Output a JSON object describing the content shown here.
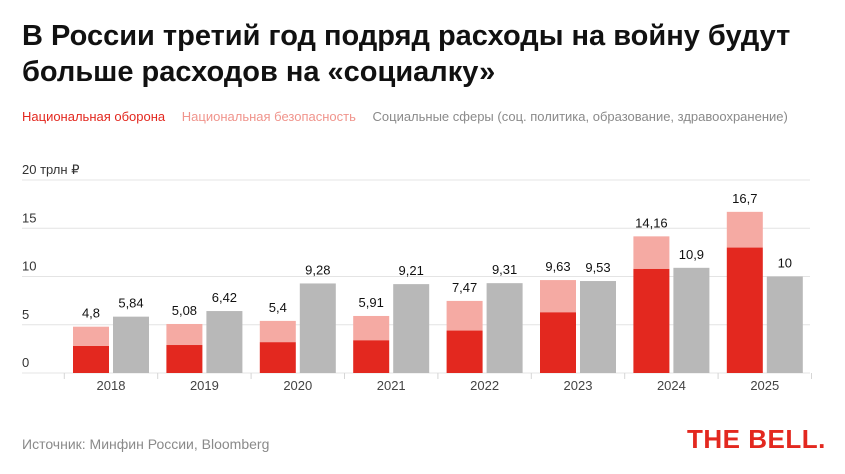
{
  "title": "В России третий год подряд расходы на войну будут больше расходов на «социалку»",
  "legend": {
    "defense": "Национальная оборона",
    "security": "Национальная безопасность",
    "social": "Социальные сферы (соц. политика, образование, здравоохранение)"
  },
  "source": "Источник: Минфин России, Bloomberg",
  "brand": "THE BELL.",
  "colors": {
    "defense": "#e3281f",
    "security": "#f5aaa3",
    "social": "#b8b8b8"
  },
  "chart_data": {
    "type": "bar",
    "categories": [
      "2018",
      "2019",
      "2020",
      "2021",
      "2022",
      "2023",
      "2024",
      "2025"
    ],
    "ylim": [
      0,
      20
    ],
    "y_ticks": [
      {
        "value": 0,
        "label": "0"
      },
      {
        "value": 5,
        "label": "5"
      },
      {
        "value": 10,
        "label": "10"
      },
      {
        "value": 15,
        "label": "15"
      },
      {
        "value": 20,
        "label": "20 трлн ₽"
      }
    ],
    "grid": true,
    "series": [
      {
        "key": "defense",
        "name": "Национальная оборона",
        "values": [
          2.8,
          2.9,
          3.2,
          3.4,
          4.4,
          6.3,
          10.8,
          13.0
        ]
      },
      {
        "key": "security",
        "name": "Национальная безопасность",
        "values": [
          2.0,
          2.18,
          2.2,
          2.51,
          3.07,
          3.33,
          3.36,
          3.7
        ]
      },
      {
        "key": "social",
        "name": "Социальные сферы (соц. политика, образование, здравоохранение)",
        "values": [
          5.84,
          6.42,
          9.28,
          9.21,
          9.31,
          9.53,
          10.9,
          10
        ]
      }
    ],
    "labels": {
      "military": [
        "4,8",
        "5,08",
        "5,4",
        "5,91",
        "7,47",
        "9,63",
        "14,16",
        "16,7"
      ],
      "social": [
        "5,84",
        "6,42",
        "9,28",
        "9,21",
        "9,31",
        "9,53",
        "10,9",
        "10"
      ]
    }
  }
}
